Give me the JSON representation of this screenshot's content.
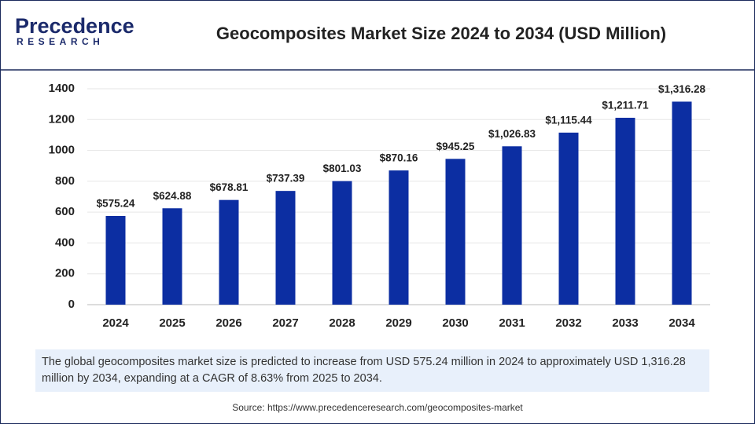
{
  "header": {
    "logo_top": "Precedence",
    "logo_bottom": "RESEARCH"
  },
  "chart_data": {
    "type": "bar",
    "title": "Geocomposites Market Size 2024 to 2034 (USD Million)",
    "categories": [
      "2024",
      "2025",
      "2026",
      "2027",
      "2028",
      "2029",
      "2030",
      "2031",
      "2032",
      "2033",
      "2034"
    ],
    "values": [
      575.24,
      624.88,
      678.81,
      737.39,
      801.03,
      870.16,
      945.25,
      1026.83,
      1115.44,
      1211.71,
      1316.28
    ],
    "value_labels": [
      "$575.24",
      "$624.88",
      "$678.81",
      "$737.39",
      "$801.03",
      "$870.16",
      "$945.25",
      "$1,026.83",
      "$1,115.44",
      "$1,211.71",
      "$1,316.28"
    ],
    "color": "#0c2ea2",
    "ylim": [
      0,
      1400
    ],
    "yticks": [
      0,
      200,
      400,
      600,
      800,
      1000,
      1200,
      1400
    ],
    "grid": true
  },
  "summary": "The global geocomposites market size is predicted to increase from USD 575.24 million in 2024 to approximately USD 1,316.28 million by 2034, expanding at a CAGR of 8.63% from 2025 to 2034.",
  "source": "Source: https://www.precedenceresearch.com/geocomposites-market"
}
